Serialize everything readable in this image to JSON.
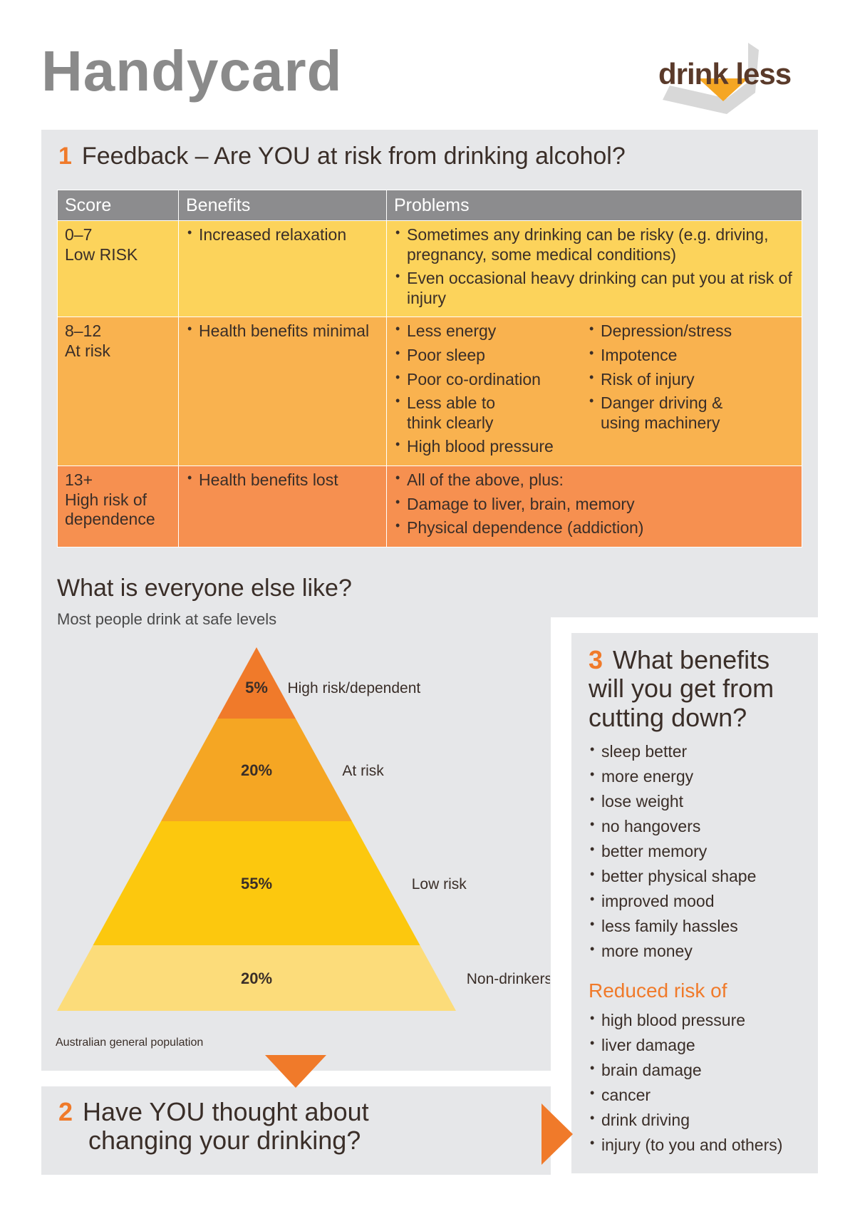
{
  "title": "Handycard",
  "logo": {
    "text": "drink less"
  },
  "section1": {
    "number": "1",
    "title": "Feedback – Are YOU at risk from drinking alcohol?",
    "table": {
      "headers": [
        "Score",
        "Benefits",
        "Problems"
      ],
      "rows": [
        {
          "score": "0–7",
          "level": "Low RISK",
          "benefits": [
            "Increased relaxation"
          ],
          "problems_left": [
            "Sometimes any drinking can be risky (e.g. driving, pregnancy, some medical conditions)",
            "Even occasional heavy drinking can put you at risk of injury"
          ],
          "problems_right": []
        },
        {
          "score": "8–12",
          "level": "At risk",
          "benefits": [
            "Health benefits minimal"
          ],
          "problems_left": [
            "Less energy",
            "Poor sleep",
            "Poor co-ordination",
            "Less able to think clearly",
            "High blood pressure"
          ],
          "problems_right": [
            "Depression/stress",
            "Impotence",
            "Risk of injury",
            "Danger driving & using machinery"
          ]
        },
        {
          "score": "13+",
          "level": "High risk of dependence",
          "benefits": [
            "Health benefits lost"
          ],
          "problems_left": [
            "All of the above, plus:",
            "Damage to liver, brain, memory",
            "Physical dependence (addiction)"
          ],
          "problems_right": []
        }
      ]
    }
  },
  "everyone": {
    "heading": "What is everyone else like?",
    "subheading": "Most people drink at safe levels",
    "source": "Australian general population"
  },
  "chart_data": {
    "type": "pyramid",
    "categories": [
      "High risk/dependent",
      "At risk",
      "Low risk",
      "Non-drinkers"
    ],
    "values": [
      5,
      20,
      55,
      20
    ],
    "value_labels": [
      "5%",
      "20%",
      "55%",
      "20%"
    ],
    "colors": [
      "#f07a2a",
      "#f5a623",
      "#fcc80e",
      "#fcdc7a"
    ]
  },
  "section2": {
    "number": "2",
    "title_line1": "Have YOU thought about",
    "title_line2": "changing your drinking?"
  },
  "section3": {
    "number": "3",
    "title_line1": "What benefits",
    "title_line2": "will you get from",
    "title_line3": "cutting down?",
    "benefits": [
      "sleep better",
      "more energy",
      "lose weight",
      "no hangovers",
      "better memory",
      "better physical shape",
      "improved mood",
      "less family hassles",
      "more money"
    ],
    "reduced_heading": "Reduced risk of",
    "reduced": [
      "high blood pressure",
      "liver damage",
      "brain damage",
      "cancer",
      "drink driving",
      "injury (to you and others)"
    ]
  },
  "colors": {
    "accent": "#f07a2a",
    "panel": "#e6e7e9",
    "header_gray": "#8c8c8e"
  }
}
